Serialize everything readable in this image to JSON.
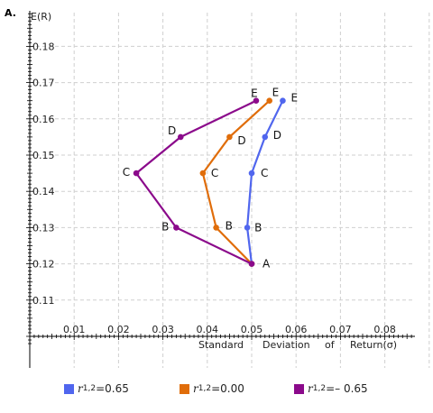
{
  "chart_data": {
    "type": "line",
    "panel_label": "A.",
    "ylabel": "E(R)",
    "xlabel_words": [
      "Standard",
      "Deviation",
      "of",
      "Return(σ)"
    ],
    "xlim": [
      0,
      0.09
    ],
    "ylim": [
      0.1,
      0.19
    ],
    "x_ticks": [
      "0.01",
      "0.02",
      "0.03",
      "0.04",
      "0.05",
      "0.06",
      "0.07",
      "0.08"
    ],
    "x_tick_values": [
      0.01,
      0.02,
      0.03,
      0.04,
      0.05,
      0.06,
      0.07,
      0.08
    ],
    "y_ticks": [
      "0.11",
      "0.12",
      "0.13",
      "0.14",
      "0.15",
      "0.16",
      "0.17",
      "0.18"
    ],
    "y_tick_values": [
      0.11,
      0.12,
      0.13,
      0.14,
      0.15,
      0.16,
      0.17,
      0.18
    ],
    "grid": true,
    "legend_placement": "bottom",
    "series": [
      {
        "legend_prefix": "r",
        "legend_sub": "1,2",
        "legend_value": "=0.65",
        "color": "#5066ee",
        "points": [
          {
            "label": "A",
            "x": 0.05,
            "y": 0.12
          },
          {
            "label": "B",
            "x": 0.049,
            "y": 0.13
          },
          {
            "label": "C",
            "x": 0.05,
            "y": 0.145
          },
          {
            "label": "D",
            "x": 0.053,
            "y": 0.155
          },
          {
            "label": "E",
            "x": 0.057,
            "y": 0.165
          }
        ]
      },
      {
        "legend_prefix": "r",
        "legend_sub": "1,2",
        "legend_value": "=0.00",
        "color": "#e06d0a",
        "points": [
          {
            "label": "A",
            "x": 0.05,
            "y": 0.12
          },
          {
            "label": "B",
            "x": 0.042,
            "y": 0.13
          },
          {
            "label": "C",
            "x": 0.039,
            "y": 0.145
          },
          {
            "label": "D",
            "x": 0.045,
            "y": 0.155
          },
          {
            "label": "E",
            "x": 0.054,
            "y": 0.165
          }
        ]
      },
      {
        "legend_prefix": "r",
        "legend_sub": "1,2",
        "legend_value": "=– 0.65",
        "color": "#8b0a8b",
        "points": [
          {
            "label": "A",
            "x": 0.05,
            "y": 0.12
          },
          {
            "label": "B",
            "x": 0.033,
            "y": 0.13
          },
          {
            "label": "C",
            "x": 0.024,
            "y": 0.145
          },
          {
            "label": "D",
            "x": 0.034,
            "y": 0.155
          },
          {
            "label": "E",
            "x": 0.051,
            "y": 0.165
          }
        ]
      }
    ]
  }
}
